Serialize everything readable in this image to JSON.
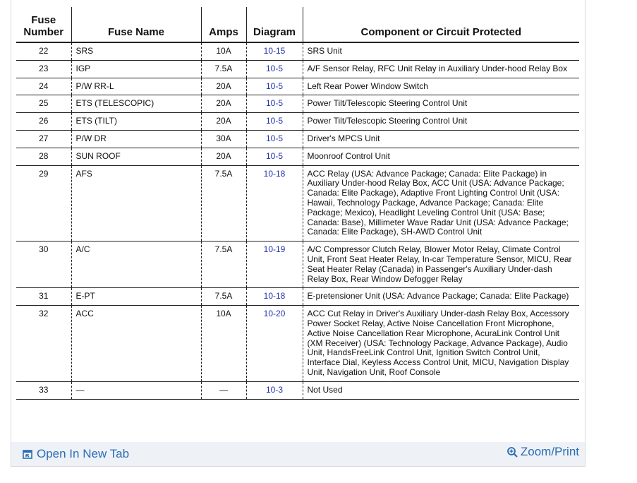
{
  "header": {
    "columns": [
      "Fuse Number",
      "Fuse Name",
      "Amps",
      "Diagram",
      "Component or Circuit Protected"
    ]
  },
  "table": {
    "rows": [
      [
        "22",
        "SRS",
        "10A",
        "10-15",
        "SRS Unit"
      ],
      [
        "23",
        "IGP",
        "7.5A",
        "10-5",
        "A/F Sensor Relay, RFC Unit Relay in Auxiliary Under-hood Relay Box"
      ],
      [
        "24",
        "P/W RR-L",
        "20A",
        "10-5",
        "Left Rear Power Window Switch"
      ],
      [
        "25",
        "ETS (TELESCOPIC)",
        "20A",
        "10-5",
        "Power Tilt/Telescopic Steering Control Unit"
      ],
      [
        "26",
        "ETS (TILT)",
        "20A",
        "10-5",
        "Power Tilt/Telescopic Steering Control Unit"
      ],
      [
        "27",
        "P/W DR",
        "30A",
        "10-5",
        "Driver's MPCS Unit"
      ],
      [
        "28",
        "SUN ROOF",
        "20A",
        "10-5",
        "Moonroof Control Unit"
      ],
      [
        "29",
        "AFS",
        "7.5A",
        "10-18",
        "ACC Relay (USA: Advance Package; Canada: Elite Package) in Auxiliary Under-hood Relay Box, ACC Unit (USA: Advance Package; Canada: Elite Package), Adaptive Front Lighting Control Unit (USA: Hawaii, Technology Package, Advance Package; Canada: Elite Package; Mexico), Headlight Leveling Control Unit (USA: Base; Canada: Base), Millimeter Wave Radar Unit (USA: Advance Package; Canada: Elite Package), SH-AWD Control Unit"
      ],
      [
        "30",
        "A/C",
        "7.5A",
        "10-19",
        "A/C Compressor Clutch Relay, Blower Motor Relay, Climate Control Unit, Front Seat Heater Relay, In-car Temperature Sensor, MICU, Rear Seat Heater Relay (Canada) in Passenger's Auxiliary Under-dash Relay Box, Rear Window Defogger Relay"
      ],
      [
        "31",
        "E-PT",
        "7.5A",
        "10-18",
        "E-pretensioner Unit (USA: Advance Package; Canada: Elite Package)"
      ],
      [
        "32",
        "ACC",
        "10A",
        "10-20",
        "ACC Cut Relay in Driver's Auxiliary Under-dash Relay Box, Accessory Power Socket Relay, Active Noise Cancellation Front Microphone, Active Noise Cancellation Rear Microphone, AcuraLink Control Unit (XM Receiver) (USA: Technology Package, Advance Package), Audio Unit, HandsFreeLink Control Unit, Ignition Switch Control Unit, Interface Dial, Keyless Access Control Unit, MICU, Navigation Display Unit, Navigation Unit, Roof Console"
      ],
      [
        "33",
        "—",
        "—",
        "10-3",
        "Not Used"
      ]
    ]
  },
  "footer": {
    "open_label": "Open In New Tab",
    "zoom_label": "Zoom/Print"
  }
}
